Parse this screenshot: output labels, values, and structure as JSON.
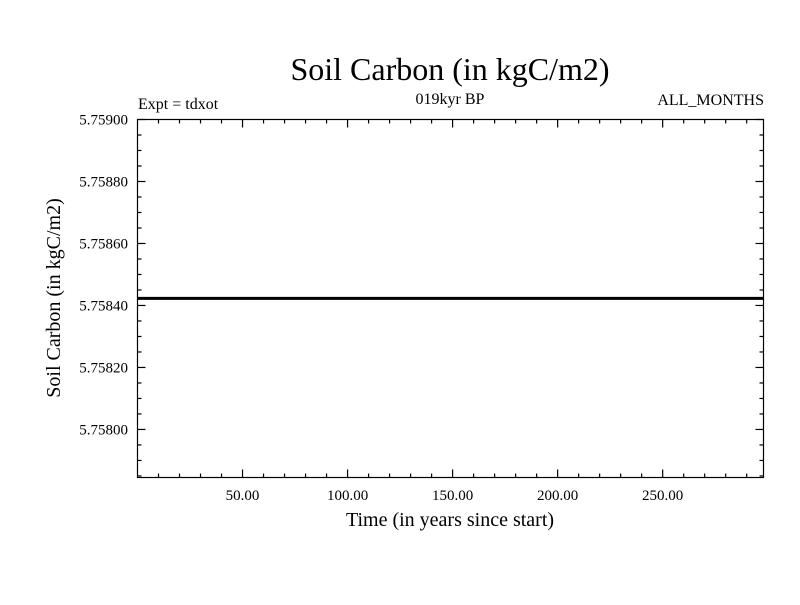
{
  "chart_data": {
    "type": "line",
    "title": "Soil Carbon (in kgC/m2)",
    "subtitle": "019kyr BP",
    "left_label": "Expt = tdxot",
    "right_label": "ALL_MONTHS",
    "xlabel": "Time (in years since start)",
    "ylabel": "Soil Carbon (in kgC/m2)",
    "xlim": [
      0,
      298
    ],
    "ylim": [
      5.757845,
      5.759
    ],
    "x_ticks": [
      50,
      100,
      150,
      200,
      250
    ],
    "x_tick_labels": [
      "50.00",
      "100.00",
      "150.00",
      "200.00",
      "250.00"
    ],
    "x_minor_step": 10,
    "y_ticks": [
      5.759,
      5.7588,
      5.7586,
      5.7584,
      5.7582,
      5.758
    ],
    "y_tick_labels": [
      "5.75900",
      "5.75880",
      "5.75860",
      "5.75840",
      "5.75820",
      "5.75800"
    ],
    "y_minor_step": 5e-05,
    "grid": false,
    "series": [
      {
        "name": "Soil Carbon",
        "color": "#000000",
        "x": [
          0,
          298
        ],
        "values": [
          5.758423,
          5.758423
        ]
      }
    ]
  }
}
